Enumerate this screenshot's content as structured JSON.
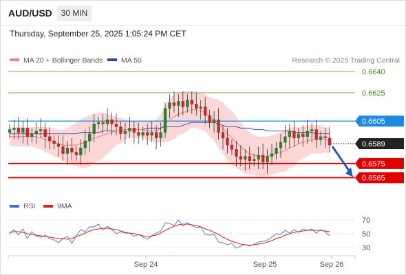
{
  "header": {
    "symbol": "AUD/USD",
    "timeframe": "30 MIN"
  },
  "datetime": "Thursday, September 25, 2025 1:05:24 PM CET",
  "legend": {
    "ma20": "MA 20 + Bollinger Bands",
    "ma50": "MA 50",
    "copyright": "Research © 2025 Trading Central"
  },
  "rsi_legend": {
    "rsi": "RSI",
    "ma": "9MA"
  },
  "colors": {
    "bull": "#2e7d32",
    "bear": "#c62828",
    "ma20": "#f08080",
    "band": "#fbd0d0",
    "ma50": "#3f51b5",
    "target": "#7cb342",
    "pivot": "#1e88e5",
    "support": "#e00000",
    "current": "#222222",
    "arrow": "#1e5fb4",
    "rsi": "#4a6fd4",
    "rsi_ma": "#e02020"
  },
  "chart_data": {
    "type": "candlestick",
    "ylim": [
      0.6554,
      0.6643
    ],
    "x_labels": [
      "Sep 24",
      "Sep 25",
      "Sep 26"
    ],
    "levels": [
      {
        "value": 0.664,
        "label": "0.6640",
        "kind": "target"
      },
      {
        "value": 0.6625,
        "label": "0.6625",
        "kind": "target"
      },
      {
        "value": 0.6605,
        "label": "0.6605",
        "kind": "pivot"
      },
      {
        "value": 0.6589,
        "label": "0.6589",
        "kind": "current"
      },
      {
        "value": 0.6575,
        "label": "0.6575",
        "kind": "support"
      },
      {
        "value": 0.6565,
        "label": "0.6565",
        "kind": "support"
      }
    ],
    "forecast": {
      "from": 0.6589,
      "to": 0.6565
    },
    "price_close": [
      0.6599,
      0.66,
      0.6597,
      0.66,
      0.6594,
      0.6596,
      0.6598,
      0.6599,
      0.6594,
      0.6591,
      0.6589,
      0.6587,
      0.6582,
      0.6586,
      0.6583,
      0.6581,
      0.6586,
      0.6591,
      0.6596,
      0.6603,
      0.6604,
      0.6603,
      0.6606,
      0.6603,
      0.6601,
      0.6596,
      0.6598,
      0.66,
      0.6597,
      0.6595,
      0.6597,
      0.6595,
      0.6597,
      0.6593,
      0.6597,
      0.6614,
      0.6618,
      0.6616,
      0.6619,
      0.6615,
      0.662,
      0.6617,
      0.6614,
      0.6615,
      0.6609,
      0.6604,
      0.6606,
      0.6597,
      0.6593,
      0.6588,
      0.6585,
      0.658,
      0.6578,
      0.658,
      0.6577,
      0.6578,
      0.6581,
      0.6576,
      0.658,
      0.6582,
      0.6586,
      0.659,
      0.6594,
      0.6598,
      0.6593,
      0.6596,
      0.6594,
      0.6598,
      0.6599,
      0.6592,
      0.6594,
      0.6593,
      0.6588
    ],
    "ma20": [
      0.6594,
      0.6594,
      0.6594,
      0.6594,
      0.6594,
      0.6594,
      0.6594,
      0.6593,
      0.6592,
      0.6591,
      0.659,
      0.6589,
      0.6588,
      0.6588,
      0.6588,
      0.6588,
      0.6589,
      0.659,
      0.6591,
      0.6593,
      0.6594,
      0.6595,
      0.6596,
      0.6597,
      0.6598,
      0.6598,
      0.6599,
      0.6599,
      0.6599,
      0.6599,
      0.6599,
      0.6598,
      0.6598,
      0.6598,
      0.66,
      0.6603,
      0.6606,
      0.6608,
      0.661,
      0.6611,
      0.6612,
      0.6613,
      0.6613,
      0.6612,
      0.6611,
      0.6608,
      0.6606,
      0.6603,
      0.66,
      0.6596,
      0.6593,
      0.659,
      0.6587,
      0.6584,
      0.6582,
      0.6581,
      0.658,
      0.658,
      0.658,
      0.6581,
      0.6582,
      0.6583,
      0.6584,
      0.6586,
      0.6587,
      0.6589,
      0.659,
      0.6591,
      0.6592,
      0.6592,
      0.6592,
      0.6592,
      0.6591
    ],
    "bb_upper": [
      0.66,
      0.6601,
      0.6601,
      0.6601,
      0.6601,
      0.6601,
      0.6601,
      0.6601,
      0.6601,
      0.66,
      0.66,
      0.6599,
      0.6599,
      0.66,
      0.6602,
      0.6604,
      0.6606,
      0.6608,
      0.6609,
      0.661,
      0.6611,
      0.6611,
      0.661,
      0.6609,
      0.6608,
      0.6607,
      0.6606,
      0.6605,
      0.6605,
      0.6605,
      0.6605,
      0.6605,
      0.6605,
      0.6606,
      0.661,
      0.6616,
      0.6621,
      0.6624,
      0.6625,
      0.6626,
      0.6626,
      0.6626,
      0.6626,
      0.6625,
      0.6624,
      0.6622,
      0.6621,
      0.662,
      0.6618,
      0.6615,
      0.6612,
      0.6608,
      0.6604,
      0.66,
      0.6597,
      0.6595,
      0.6594,
      0.6594,
      0.6594,
      0.6595,
      0.6596,
      0.6597,
      0.6599,
      0.66,
      0.6601,
      0.6601,
      0.6601,
      0.6602,
      0.6602,
      0.6602,
      0.6602,
      0.6601,
      0.66
    ],
    "bb_lower": [
      0.6588,
      0.6587,
      0.6587,
      0.6587,
      0.6587,
      0.6587,
      0.6586,
      0.6585,
      0.6583,
      0.6582,
      0.658,
      0.6579,
      0.6577,
      0.6576,
      0.6574,
      0.6573,
      0.6572,
      0.6572,
      0.6573,
      0.6576,
      0.6577,
      0.6579,
      0.6582,
      0.6585,
      0.6588,
      0.6589,
      0.6592,
      0.6593,
      0.6593,
      0.6593,
      0.6593,
      0.6591,
      0.6591,
      0.659,
      0.659,
      0.659,
      0.6591,
      0.6592,
      0.6595,
      0.6596,
      0.6598,
      0.66,
      0.66,
      0.6599,
      0.6598,
      0.6594,
      0.6591,
      0.6586,
      0.6582,
      0.6577,
      0.6574,
      0.6572,
      0.657,
      0.6568,
      0.6567,
      0.6567,
      0.6566,
      0.6566,
      0.6566,
      0.6567,
      0.6568,
      0.6569,
      0.6569,
      0.6572,
      0.6573,
      0.6577,
      0.6579,
      0.658,
      0.6582,
      0.6582,
      0.6582,
      0.6583,
      0.6582
    ],
    "ma50": [
      0.6596,
      0.6596,
      0.6596,
      0.6596,
      0.6596,
      0.6596,
      0.6596,
      0.6596,
      0.6596,
      0.6596,
      0.6596,
      0.6596,
      0.6596,
      0.6596,
      0.6596,
      0.6596,
      0.6597,
      0.6597,
      0.6597,
      0.6597,
      0.6597,
      0.6598,
      0.6598,
      0.6598,
      0.6598,
      0.6598,
      0.6599,
      0.6599,
      0.6599,
      0.6599,
      0.6599,
      0.66,
      0.66,
      0.66,
      0.66,
      0.6601,
      0.6601,
      0.6601,
      0.6601,
      0.6602,
      0.6603,
      0.6604,
      0.6604,
      0.6604,
      0.6604,
      0.6604,
      0.6604,
      0.6603,
      0.6602,
      0.6601,
      0.6601,
      0.6601,
      0.66,
      0.66,
      0.66,
      0.6599,
      0.6599,
      0.6599,
      0.6598,
      0.6598,
      0.6598,
      0.6598,
      0.6598,
      0.6598,
      0.6597,
      0.6597,
      0.6597,
      0.6597,
      0.6597,
      0.6596,
      0.6596,
      0.6596,
      0.6596
    ],
    "rsi": {
      "ylim": [
        25,
        75
      ],
      "ticks": [
        70,
        50,
        30
      ],
      "values": [
        50,
        56,
        48,
        57,
        43,
        53,
        46,
        45,
        48,
        43,
        41,
        37,
        43,
        46,
        36,
        47,
        56,
        53,
        60,
        60,
        64,
        55,
        61,
        56,
        50,
        53,
        51,
        51,
        46,
        49,
        45,
        42,
        47,
        51,
        54,
        66,
        65,
        62,
        70,
        61,
        66,
        62,
        59,
        60,
        49,
        48,
        49,
        38,
        37,
        34,
        36,
        29,
        32,
        34,
        32,
        35,
        38,
        39,
        41,
        45,
        50,
        49,
        55,
        51,
        56,
        52,
        57,
        55,
        57,
        51,
        56,
        53,
        47
      ],
      "ma": [
        52,
        53,
        53,
        52,
        50,
        49,
        48,
        47,
        46,
        45,
        44,
        43,
        43,
        42,
        43,
        46,
        48,
        51,
        54,
        56,
        57,
        58,
        58,
        57,
        56,
        54,
        52,
        51,
        50,
        49,
        47,
        46,
        47,
        48,
        51,
        55,
        58,
        61,
        63,
        64,
        64,
        63,
        62,
        60,
        57,
        55,
        52,
        49,
        45,
        42,
        39,
        37,
        35,
        34,
        33,
        34,
        35,
        36,
        38,
        40,
        43,
        45,
        48,
        50,
        52,
        53,
        54,
        55,
        55,
        55,
        55,
        54,
        53
      ]
    }
  }
}
